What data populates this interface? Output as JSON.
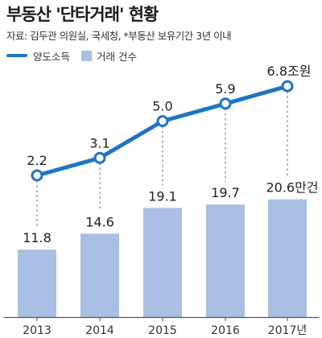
{
  "title": "부동산 '단타거래' 현황",
  "source": "자료: 김두관 의원실, 국세청, *부동산 보유기간 3년 이내",
  "legend": {
    "line_label": "양도소득",
    "bar_label": "거래 건수"
  },
  "colors": {
    "line": "#1f74c4",
    "bar": "#a9bfe3",
    "axis": "#555555"
  },
  "chart_data": {
    "type": "bar",
    "categories": [
      "2013",
      "2014",
      "2015",
      "2016",
      "2017년"
    ],
    "series": [
      {
        "name": "거래 건수",
        "type": "bar",
        "values": [
          11.8,
          14.6,
          19.1,
          19.7,
          20.6
        ],
        "labels": [
          "11.8",
          "14.6",
          "19.1",
          "19.7",
          "20.6만건"
        ]
      },
      {
        "name": "양도소득",
        "type": "line",
        "values": [
          2.2,
          3.1,
          5.0,
          5.9,
          6.8
        ],
        "labels": [
          "2.2",
          "3.1",
          "5.0",
          "5.9",
          "6.8조원"
        ]
      }
    ],
    "title": "부동산 '단타거래' 현황",
    "xlabel": "",
    "ylabel": "",
    "grid": false,
    "legend_position": "top-left"
  }
}
